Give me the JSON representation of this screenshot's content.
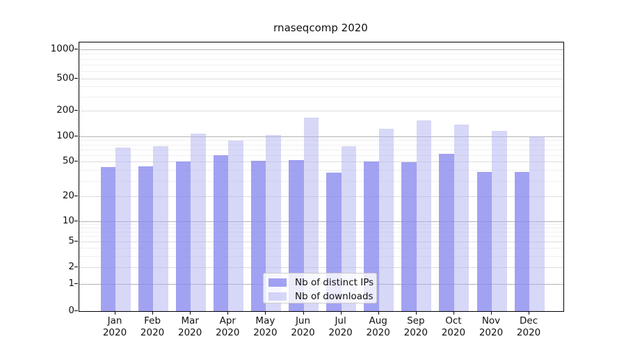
{
  "title": "rnaseqcomp 2020",
  "legend": {
    "entries": [
      "Nb of distinct IPs",
      "Nb of downloads"
    ]
  },
  "colors": {
    "distinct_ips_bar": "rgba(136,136,238,0.78)",
    "downloads_bar": "rgba(175,175,240,0.5)",
    "axis": "#000000",
    "grid_major": "#b3b3b3",
    "grid_minor": "#efefef"
  },
  "chart_data": {
    "type": "bar",
    "title": "rnaseqcomp 2020",
    "categories": [
      "Jan",
      "Feb",
      "Mar",
      "Apr",
      "May",
      "Jun",
      "Jul",
      "Aug",
      "Sep",
      "Oct",
      "Nov",
      "Dec"
    ],
    "category_year": "2020",
    "series": [
      {
        "name": "Nb of distinct IPs",
        "values": [
          43,
          44,
          50,
          59,
          51,
          52,
          37,
          50,
          49,
          62,
          38,
          38
        ]
      },
      {
        "name": "Nb of downloads",
        "values": [
          74,
          76,
          108,
          89,
          103,
          166,
          76,
          123,
          154,
          137,
          116,
          100
        ]
      }
    ],
    "xlabel": "",
    "ylabel": "",
    "y_scale": "log-like (linear below 1)",
    "y_ticks": [
      0,
      1,
      2,
      5,
      10,
      20,
      50,
      100,
      200,
      500,
      1000
    ],
    "ylim": [
      0,
      1000
    ],
    "grid": "horizontal major + faint log minors",
    "legend_position": "inside bottom-center"
  }
}
